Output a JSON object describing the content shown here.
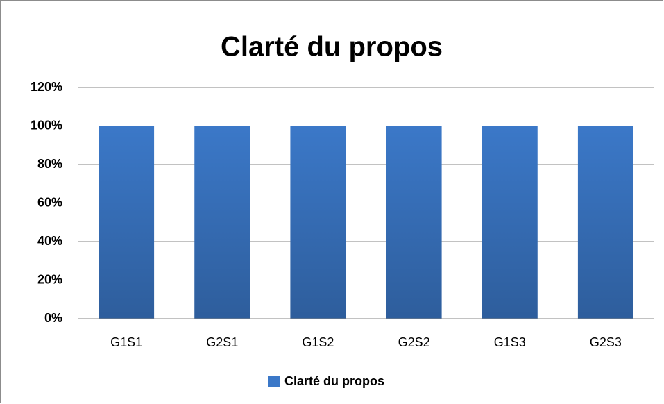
{
  "chart_data": {
    "type": "bar",
    "title": "Clarté du propos",
    "categories": [
      "G1S1",
      "G2S1",
      "G1S2",
      "G2S2",
      "G1S3",
      "G2S3"
    ],
    "series": [
      {
        "name": "Clarté du propos",
        "color": "#3b78c8",
        "values": [
          100,
          100,
          100,
          100,
          100,
          100
        ]
      }
    ],
    "ylim": [
      0,
      120
    ],
    "yticks": [
      {
        "value": 0,
        "label": "0%"
      },
      {
        "value": 20,
        "label": "20%"
      },
      {
        "value": 40,
        "label": "40%"
      },
      {
        "value": 60,
        "label": "60%"
      },
      {
        "value": 80,
        "label": "80%"
      },
      {
        "value": 100,
        "label": "100%"
      },
      {
        "value": 120,
        "label": "120%"
      }
    ],
    "grid": true,
    "legend": "bottom"
  }
}
